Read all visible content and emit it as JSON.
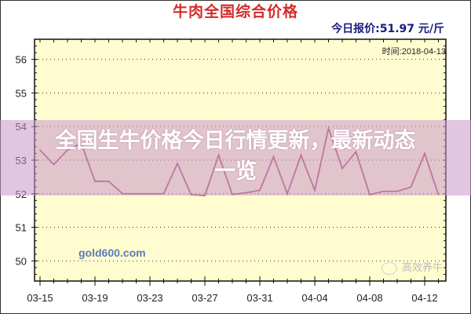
{
  "chart_data": {
    "type": "line",
    "title": "牛肉全国综合价格",
    "subtitle": "今日报价:51.97 元/斤",
    "annotation_time": "时间:2018-04-13",
    "watermark": "gold600.com",
    "xlabel": "",
    "ylabel": "",
    "ylim": [
      49.4,
      56.6
    ],
    "yticks": [
      50,
      51,
      52,
      53,
      54,
      55,
      56
    ],
    "xtick_labels": [
      "03-15",
      "03-19",
      "03-23",
      "03-27",
      "03-31",
      "04-04",
      "04-08",
      "04-12"
    ],
    "grid": true,
    "line_color": "#b05070",
    "background_color": "#fffdd0",
    "x": [
      "03-15",
      "03-16",
      "03-17",
      "03-18",
      "03-19",
      "03-20",
      "03-21",
      "03-22",
      "03-23",
      "03-24",
      "03-25",
      "03-26",
      "03-27",
      "03-28",
      "03-29",
      "03-30",
      "03-31",
      "04-01",
      "04-02",
      "04-03",
      "04-04",
      "04-05",
      "04-06",
      "04-07",
      "04-08",
      "04-09",
      "04-10",
      "04-11",
      "04-12",
      "04-13"
    ],
    "values": [
      53.3,
      52.87,
      53.3,
      53.5,
      52.37,
      52.37,
      52.0,
      52.0,
      52.0,
      52.0,
      52.9,
      51.97,
      51.95,
      53.15,
      51.98,
      52.03,
      52.1,
      53.1,
      52.0,
      53.15,
      52.1,
      53.95,
      52.75,
      53.25,
      51.97,
      52.07,
      52.07,
      52.2,
      53.2,
      51.97
    ]
  },
  "overlay": {
    "headline_line1": "全国生牛价格今日行情更新，最新动态",
    "headline_line2": "一览",
    "banner_color": "#d8b4d8"
  },
  "source_watermark": "高效养牛"
}
